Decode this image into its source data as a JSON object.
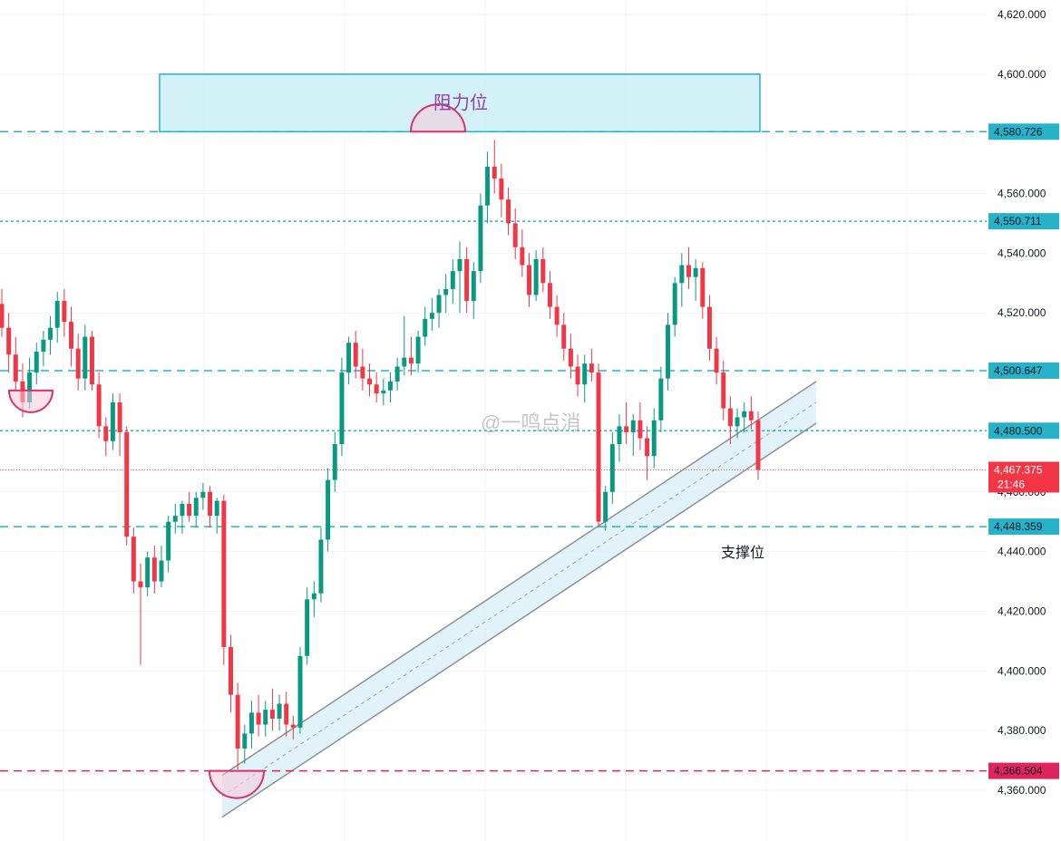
{
  "chart_data": {
    "type": "candlestick",
    "title": "",
    "xlabel": "",
    "ylabel": "",
    "ylim": [
      4355,
      4625
    ],
    "grid": true,
    "y_ticks": [
      "4,620.000",
      "4,600.000",
      "4,580.000",
      "4,560.000",
      "4,540.000",
      "4,520.000",
      "4,500.000",
      "4,480.000",
      "4,460.000",
      "4,440.000",
      "4,420.000",
      "4,400.000",
      "4,380.000",
      "4,360.000"
    ],
    "y_tick_values": [
      4620,
      4600,
      4580,
      4560,
      4540,
      4520,
      4500,
      4480,
      4460,
      4440,
      4420,
      4400,
      4380,
      4360
    ],
    "levels": [
      {
        "value": 4580.726,
        "label": "4,580.726",
        "color": "#26b3c9",
        "style": "dashed"
      },
      {
        "value": 4550.711,
        "label": "4,550.711",
        "color": "#26b3c9",
        "style": "dotted"
      },
      {
        "value": 4500.647,
        "label": "4,500.647",
        "color": "#26b3c9",
        "style": "dashed"
      },
      {
        "value": 4480.5,
        "label": "4,480.500",
        "color": "#26b3c9",
        "style": "dotted"
      },
      {
        "value": 4448.359,
        "label": "4,448.359",
        "color": "#26b3c9",
        "style": "dashed"
      },
      {
        "value": 4366.504,
        "label": "4,366.504",
        "color": "#e0245e",
        "style": "dashed"
      }
    ],
    "current_price": {
      "value": 4467.375,
      "label": "4,467.375",
      "countdown": "21:46",
      "color": "#f23645"
    },
    "resistance_zone": {
      "low": 4580.726,
      "high": 4600,
      "label": "阻力位",
      "color": "#c4eef5"
    },
    "support_channel": {
      "label": "支撑位",
      "start_value": 4358,
      "end_value": 4490,
      "width": 14
    },
    "colors": {
      "up": "#089981",
      "down": "#f23645",
      "grid": "#f0f3fa"
    },
    "candles": [
      [
        4523,
        4528,
        4512,
        4515
      ],
      [
        4515,
        4520,
        4500,
        4506
      ],
      [
        4506,
        4512,
        4494,
        4497
      ],
      [
        4497,
        4503,
        4485,
        4490
      ],
      [
        4490,
        4505,
        4488,
        4500
      ],
      [
        4500,
        4510,
        4496,
        4507
      ],
      [
        4507,
        4514,
        4502,
        4511
      ],
      [
        4511,
        4519,
        4506,
        4515
      ],
      [
        4515,
        4527,
        4510,
        4524
      ],
      [
        4524,
        4528,
        4512,
        4517
      ],
      [
        4517,
        4522,
        4502,
        4508
      ],
      [
        4508,
        4513,
        4494,
        4498
      ],
      [
        4498,
        4516,
        4494,
        4512
      ],
      [
        4512,
        4514,
        4494,
        4496
      ],
      [
        4496,
        4500,
        4478,
        4482
      ],
      [
        4482,
        4485,
        4472,
        4477
      ],
      [
        4477,
        4493,
        4474,
        4490
      ],
      [
        4490,
        4493,
        4472,
        4480
      ],
      [
        4480,
        4482,
        4442,
        4445
      ],
      [
        4445,
        4448,
        4426,
        4430
      ],
      [
        4430,
        4436,
        4402,
        4428
      ],
      [
        4428,
        4440,
        4425,
        4438
      ],
      [
        4438,
        4442,
        4426,
        4430
      ],
      [
        4430,
        4442,
        4428,
        4437
      ],
      [
        4437,
        4452,
        4433,
        4450
      ],
      [
        4450,
        4456,
        4446,
        4452
      ],
      [
        4452,
        4457,
        4446,
        4456
      ],
      [
        4456,
        4460,
        4450,
        4452
      ],
      [
        4452,
        4460,
        4448,
        4458
      ],
      [
        4458,
        4463,
        4454,
        4460
      ],
      [
        4460,
        4462,
        4448,
        4452
      ],
      [
        4452,
        4458,
        4446,
        4457
      ],
      [
        4457,
        4459,
        4402,
        4408
      ],
      [
        4408,
        4412,
        4386,
        4392
      ],
      [
        4392,
        4396,
        4367,
        4374
      ],
      [
        4374,
        4382,
        4369,
        4379
      ],
      [
        4379,
        4390,
        4374,
        4386
      ],
      [
        4386,
        4392,
        4378,
        4382
      ],
      [
        4382,
        4390,
        4378,
        4387
      ],
      [
        4387,
        4394,
        4380,
        4384
      ],
      [
        4384,
        4392,
        4380,
        4389
      ],
      [
        4389,
        4393,
        4378,
        4382
      ],
      [
        4382,
        4385,
        4377,
        4381
      ],
      [
        4381,
        4408,
        4379,
        4405
      ],
      [
        4405,
        4428,
        4402,
        4424
      ],
      [
        4424,
        4430,
        4418,
        4426
      ],
      [
        4426,
        4448,
        4423,
        4444
      ],
      [
        4444,
        4468,
        4440,
        4464
      ],
      [
        4464,
        4480,
        4460,
        4476
      ],
      [
        4476,
        4505,
        4472,
        4500
      ],
      [
        4500,
        4512,
        4496,
        4510
      ],
      [
        4510,
        4514,
        4498,
        4502
      ],
      [
        4502,
        4508,
        4494,
        4498
      ],
      [
        4498,
        4503,
        4492,
        4496
      ],
      [
        4496,
        4500,
        4490,
        4493
      ],
      [
        4493,
        4498,
        4489,
        4494
      ],
      [
        4494,
        4500,
        4490,
        4497
      ],
      [
        4497,
        4505,
        4494,
        4502
      ],
      [
        4502,
        4519,
        4499,
        4505
      ],
      [
        4505,
        4512,
        4499,
        4503
      ],
      [
        4503,
        4514,
        4500,
        4512
      ],
      [
        4512,
        4522,
        4509,
        4518
      ],
      [
        4518,
        4525,
        4514,
        4520
      ],
      [
        4520,
        4528,
        4515,
        4526
      ],
      [
        4526,
        4533,
        4520,
        4528
      ],
      [
        4528,
        4538,
        4523,
        4534
      ],
      [
        4534,
        4544,
        4520,
        4538
      ],
      [
        4538,
        4542,
        4520,
        4524
      ],
      [
        4524,
        4537,
        4518,
        4534
      ],
      [
        4534,
        4560,
        4530,
        4556
      ],
      [
        4556,
        4574,
        4550,
        4569
      ],
      [
        4569,
        4578,
        4560,
        4565
      ],
      [
        4565,
        4570,
        4552,
        4558
      ],
      [
        4558,
        4562,
        4546,
        4550
      ],
      [
        4550,
        4555,
        4538,
        4542
      ],
      [
        4542,
        4548,
        4532,
        4536
      ],
      [
        4536,
        4540,
        4522,
        4526
      ],
      [
        4526,
        4541,
        4524,
        4538
      ],
      [
        4538,
        4542,
        4527,
        4530
      ],
      [
        4530,
        4534,
        4518,
        4522
      ],
      [
        4522,
        4526,
        4512,
        4516
      ],
      [
        4516,
        4520,
        4504,
        4508
      ],
      [
        4508,
        4513,
        4498,
        4502
      ],
      [
        4502,
        4506,
        4492,
        4496
      ],
      [
        4496,
        4506,
        4490,
        4503
      ],
      [
        4503,
        4508,
        4497,
        4500
      ],
      [
        4500,
        4503,
        4448,
        4450
      ],
      [
        4450,
        4462,
        4447,
        4460
      ],
      [
        4460,
        4480,
        4456,
        4476
      ],
      [
        4476,
        4486,
        4470,
        4482
      ],
      [
        4482,
        4490,
        4476,
        4480
      ],
      [
        4480,
        4486,
        4472,
        4484
      ],
      [
        4484,
        4490,
        4474,
        4478
      ],
      [
        4478,
        4482,
        4464,
        4472
      ],
      [
        4472,
        4488,
        4468,
        4484
      ],
      [
        4484,
        4502,
        4480,
        4498
      ],
      [
        4498,
        4520,
        4494,
        4516
      ],
      [
        4516,
        4532,
        4512,
        4530
      ],
      [
        4530,
        4540,
        4522,
        4536
      ],
      [
        4536,
        4542,
        4528,
        4532
      ],
      [
        4532,
        4538,
        4524,
        4535
      ],
      [
        4535,
        4537,
        4518,
        4522
      ],
      [
        4522,
        4526,
        4504,
        4508
      ],
      [
        4508,
        4512,
        4496,
        4500
      ],
      [
        4500,
        4504,
        4484,
        4488
      ],
      [
        4488,
        4492,
        4476,
        4482
      ],
      [
        4482,
        4488,
        4478,
        4485
      ],
      [
        4485,
        4490,
        4480,
        4487
      ],
      [
        4487,
        4492,
        4481,
        4484
      ],
      [
        4484,
        4487,
        4464,
        4467.375
      ]
    ]
  },
  "annotations": {
    "resistance": "阻力位",
    "support": "支撑位",
    "watermark": "@一鸣点消"
  }
}
